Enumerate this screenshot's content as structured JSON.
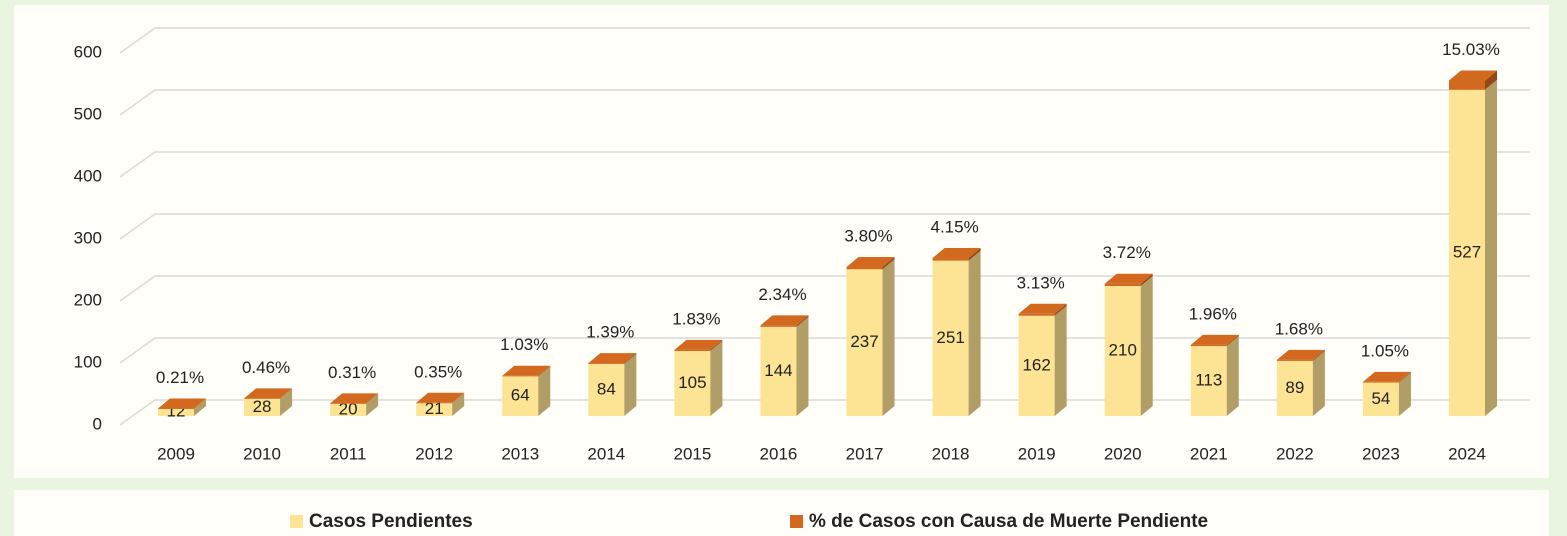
{
  "chart_data": {
    "type": "bar3d_stacked",
    "categories": [
      "2009",
      "2010",
      "2011",
      "2012",
      "2013",
      "2014",
      "2015",
      "2016",
      "2017",
      "2018",
      "2019",
      "2020",
      "2021",
      "2022",
      "2023",
      "2024"
    ],
    "series": [
      {
        "name": "Casos Pendientes",
        "color": "#fde394",
        "values": [
          12,
          28,
          20,
          21,
          64,
          84,
          105,
          144,
          237,
          251,
          162,
          210,
          113,
          89,
          54,
          527
        ]
      },
      {
        "name": "% de Casos con Causa de Muerte Pendiente",
        "color": "#d2691e",
        "values": [
          0.21,
          0.46,
          0.31,
          0.35,
          1.03,
          1.39,
          1.83,
          2.34,
          3.8,
          4.15,
          3.13,
          3.72,
          1.96,
          1.68,
          1.05,
          15.03
        ],
        "value_labels": [
          "0.21%",
          "0.46%",
          "0.31%",
          "0.35%",
          "1.03%",
          "1.39%",
          "1.83%",
          "2.34%",
          "3.80%",
          "4.15%",
          "3.13%",
          "3.72%",
          "1.96%",
          "1.68%",
          "1.05%",
          "15.03%"
        ]
      }
    ],
    "ylim": [
      0,
      600
    ],
    "yticks": [
      0,
      100,
      200,
      300,
      400,
      500,
      600
    ],
    "grid": true,
    "legend": "bottom"
  }
}
